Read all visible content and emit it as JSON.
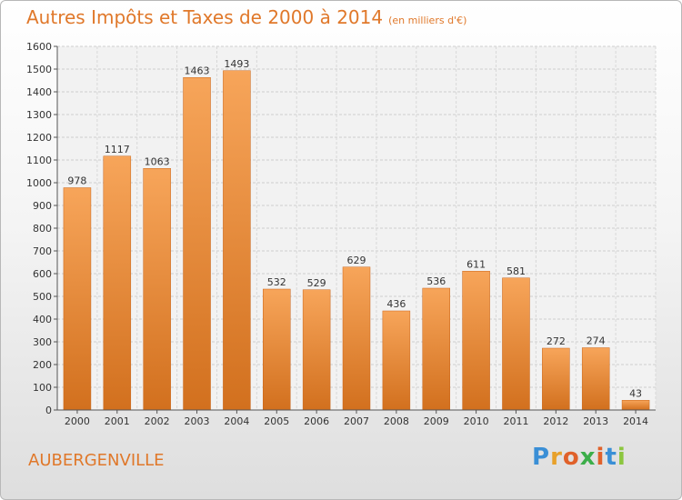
{
  "header": {
    "title": "Autres Impôts et Taxes de 2000 à 2014",
    "subtitle": "(en milliers d'€)"
  },
  "footer": {
    "city": "AUBERGENVILLE",
    "logo": {
      "letters": [
        "P",
        "r",
        "o",
        "x",
        "i",
        "t",
        "i"
      ],
      "colors": [
        "#3a8fd6",
        "#e8a12a",
        "#e0612a",
        "#3cae4a",
        "#e0612a",
        "#3a8fd6",
        "#8cc63f"
      ]
    }
  },
  "chart_data": {
    "type": "bar",
    "categories": [
      "2000",
      "2001",
      "2002",
      "2003",
      "2004",
      "2005",
      "2006",
      "2007",
      "2008",
      "2009",
      "2010",
      "2011",
      "2012",
      "2013",
      "2014"
    ],
    "values": [
      978,
      1117,
      1063,
      1463,
      1493,
      532,
      529,
      629,
      436,
      536,
      611,
      581,
      272,
      274,
      43
    ],
    "yticks": [
      0,
      100,
      200,
      300,
      400,
      500,
      600,
      700,
      800,
      900,
      1000,
      1100,
      1200,
      1300,
      1400,
      1500,
      1600
    ],
    "ylim": [
      0,
      1600
    ],
    "grid": true,
    "bar_color_top": "#f7a55a",
    "bar_color_bottom": "#d2701e"
  }
}
